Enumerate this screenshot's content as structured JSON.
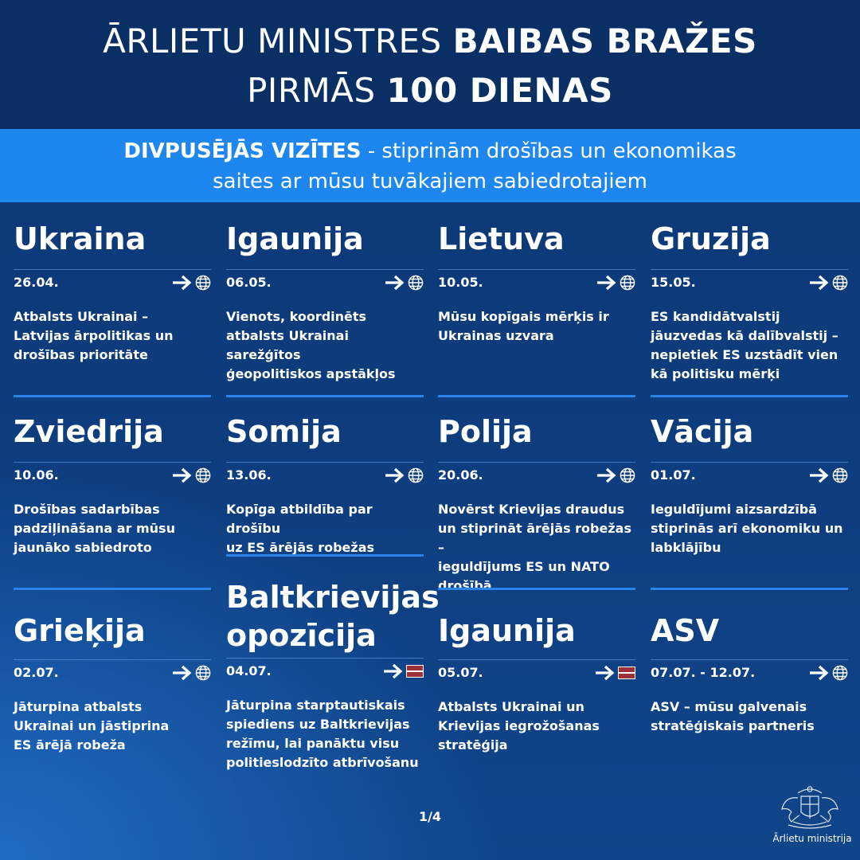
{
  "header": {
    "line1_light": "ĀRLIETU MINISTRES ",
    "line1_bold": "BAIBAS BRAŽES",
    "line2_light": "PIRMĀS ",
    "line2_bold": "100 DIENAS"
  },
  "banner": {
    "bold": "DIVPUSĒJĀS VIZĪTES",
    "text1": " - stiprinām drošības un ekonomikas",
    "text2": "saites ar mūsu tuvākajiem sabiedrotajiem"
  },
  "visits": [
    {
      "country": "Ukraina",
      "date": "26.04.",
      "icon": "globe-icon",
      "desc": [
        "Atbalsts Ukrainai –",
        "Latvijas ārpolitikas un",
        "drošības prioritāte"
      ]
    },
    {
      "country": "Igaunija",
      "date": "06.05.",
      "icon": "globe-icon",
      "desc": [
        "Vienots, koordinēts",
        "atbalsts Ukrainai sarežģītos",
        "ģeopolitiskos apstākļos"
      ]
    },
    {
      "country": "Lietuva",
      "date": "10.05.",
      "icon": "globe-icon",
      "desc": [
        "Mūsu kopīgais mērķis ir",
        "Ukrainas uzvara"
      ]
    },
    {
      "country": "Gruzija",
      "date": "15.05.",
      "icon": "globe-icon",
      "desc": [
        "ES kandidātvalstij",
        "jāuzvedas kā dalībvalstij –",
        "nepietiek ES uzstādīt vien",
        "kā politisku mērķi"
      ]
    },
    {
      "country": "Zviedrija",
      "date": "10.06.",
      "icon": "globe-icon",
      "desc": [
        "Drošības sadarbības",
        "padziļināšana ar mūsu",
        "jaunāko sabiedroto"
      ]
    },
    {
      "country": "Somija",
      "date": "13.06.",
      "icon": "globe-icon",
      "desc": [
        "Kopīga atbildība par drošību",
        "uz ES ārējās robežas"
      ]
    },
    {
      "country": "Polija",
      "date": "20.06.",
      "icon": "globe-icon",
      "desc": [
        "Novērst Krievijas draudus",
        "un stiprināt ārējās robežas –",
        "ieguldījums ES un NATO",
        "drošībā"
      ]
    },
    {
      "country": "Vācija",
      "date": "01.07.",
      "icon": "globe-icon",
      "desc": [
        "Ieguldījumi aizsardzībā",
        "stiprinās arī ekonomiku un",
        "labklājību"
      ]
    },
    {
      "country": "Grieķija",
      "date": "02.07.",
      "icon": "globe-icon",
      "desc": [
        "Jāturpina atbalsts",
        "Ukrainai un jāstiprina",
        "ES ārējā robeža"
      ]
    },
    {
      "country": "Baltkrievijas opozīcija",
      "country_lines": [
        "Baltkrievijas",
        "opozīcija"
      ],
      "date": "04.07.",
      "icon": "latvia-flag-icon",
      "desc": [
        "Jāturpina starptautiskais",
        "spiediens uz Baltkrievijas",
        "režīmu, lai panāktu visu",
        "politieslodzīto atbrīvošanu"
      ]
    },
    {
      "country": "Igaunija",
      "date": "05.07.",
      "icon": "latvia-flag-icon",
      "desc": [
        "Atbalsts Ukrainai un",
        "Krievijas iegrožošanas",
        "stratēģija"
      ]
    },
    {
      "country": "ASV",
      "date": "07.07. - 12.07.",
      "icon": "globe-icon",
      "desc": [
        "ASV – mūsu galvenais",
        "stratēģiskais partneris"
      ]
    }
  ],
  "colors": {
    "header_bg": "#0a2f64",
    "banner_bg": "#1d86ef",
    "flag_red": "#9e3039"
  },
  "footer": {
    "page": "1/4",
    "logo_caption": "Ārlietu ministrija",
    "logo_icon": "coat-of-arms-icon"
  }
}
